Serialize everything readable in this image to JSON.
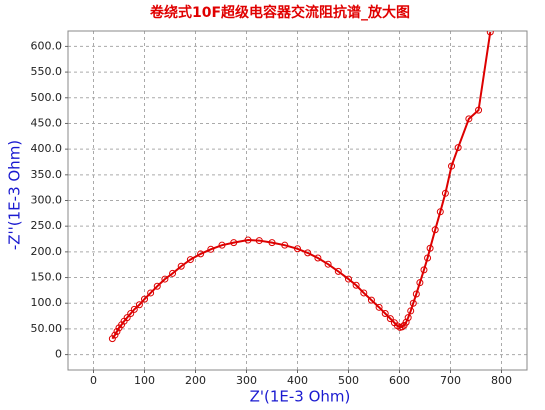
{
  "chart_data": {
    "type": "line",
    "title": "卷绕式10F超级电容器交流阻抗谱_放大图",
    "x_label": "Z'(1E-3 Ohm)",
    "y_label": "-Z''(1E-3 Ohm)",
    "x": [
      37,
      42,
      46,
      50,
      55,
      60,
      66,
      73,
      80,
      90,
      100,
      112,
      125,
      140,
      155,
      172,
      190,
      210,
      230,
      252,
      275,
      303,
      325,
      350,
      375,
      400,
      420,
      440,
      460,
      480,
      500,
      515,
      530,
      545,
      560,
      572,
      582,
      590,
      596,
      601,
      605,
      609,
      613,
      617,
      622,
      627,
      633,
      640,
      648,
      655,
      660,
      670,
      680,
      690,
      702,
      715,
      736,
      755,
      778
    ],
    "values": [
      31,
      38,
      45,
      52,
      58,
      65,
      72,
      80,
      88,
      97,
      108,
      120,
      133,
      147,
      158,
      172,
      185,
      196,
      205,
      213,
      218,
      223,
      222,
      218,
      213,
      206,
      198,
      188,
      176,
      162,
      147,
      135,
      120,
      106,
      92,
      80,
      70,
      62,
      56,
      53,
      54,
      57,
      63,
      72,
      85,
      100,
      118,
      140,
      165,
      188,
      207,
      243,
      278,
      314,
      367,
      403,
      459,
      476,
      628
    ],
    "color": "#dd0000",
    "marker": "circle",
    "xlim": [
      -50,
      850
    ],
    "ylim": [
      -30,
      630
    ],
    "xticks": [
      0,
      100,
      200,
      300,
      400,
      500,
      600,
      700,
      800
    ],
    "yticks": [
      0,
      {
        "value": 50,
        "label": "50.00"
      },
      {
        "value": 100,
        "label": "100.0"
      },
      {
        "value": 150,
        "label": "150.0"
      },
      {
        "value": 200,
        "label": "200.0"
      },
      {
        "value": 250,
        "label": "250.0"
      },
      {
        "value": 300,
        "label": "300.0"
      },
      {
        "value": 350,
        "label": "350.0"
      },
      {
        "value": 400,
        "label": "400.0"
      },
      {
        "value": 450,
        "label": "450.0"
      },
      {
        "value": 500,
        "label": "500.0"
      },
      {
        "value": 550,
        "label": "550.0"
      },
      {
        "value": 600,
        "label": "600.0"
      }
    ],
    "grid": true
  }
}
